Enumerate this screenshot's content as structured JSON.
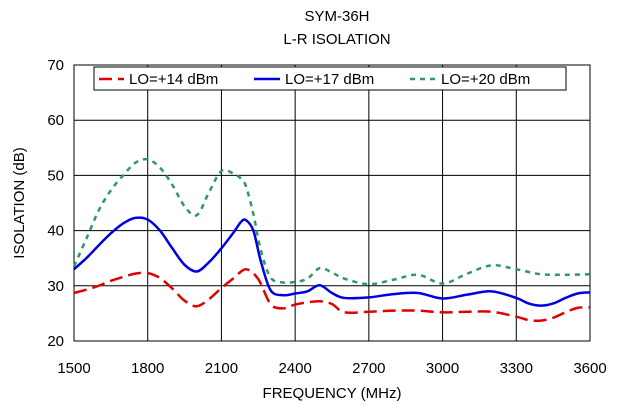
{
  "chart_data": {
    "type": "line",
    "title": "SYM-36H",
    "subtitle": "L-R ISOLATION",
    "xlabel": "FREQUENCY (MHz)",
    "ylabel": "ISOLATION (dB)",
    "xlim": [
      1500,
      3600
    ],
    "ylim": [
      20,
      70
    ],
    "xticks": [
      1500,
      1800,
      2100,
      2400,
      2700,
      3000,
      3300,
      3600
    ],
    "yticks": [
      20,
      30,
      40,
      50,
      60,
      70
    ],
    "grid": true,
    "legend_position": "top",
    "series": [
      {
        "name": "LO=+14 dBm",
        "color": "#e00000",
        "dash": "long-dash",
        "x": [
          1500,
          1550,
          1600,
          1650,
          1700,
          1750,
          1800,
          1850,
          1900,
          1950,
          2000,
          2050,
          2100,
          2150,
          2200,
          2250,
          2300,
          2350,
          2400,
          2450,
          2500,
          2550,
          2600,
          2700,
          2800,
          2900,
          3000,
          3100,
          3200,
          3300,
          3350,
          3400,
          3450,
          3500,
          3550,
          3600
        ],
        "y": [
          28.7,
          29.3,
          30.0,
          30.9,
          31.6,
          32.2,
          32.3,
          31.4,
          29.5,
          27.3,
          26.3,
          27.6,
          29.6,
          31.4,
          33.0,
          31.2,
          26.7,
          25.9,
          26.6,
          27.0,
          27.2,
          26.7,
          25.2,
          25.3,
          25.5,
          25.5,
          25.2,
          25.3,
          25.3,
          24.4,
          23.8,
          23.7,
          24.2,
          25.2,
          26.0,
          26.1
        ]
      },
      {
        "name": "LO=+17 dBm",
        "color": "#0000e0",
        "dash": "solid",
        "x": [
          1500,
          1550,
          1600,
          1650,
          1700,
          1750,
          1800,
          1850,
          1900,
          1950,
          2000,
          2050,
          2100,
          2150,
          2180,
          2200,
          2230,
          2260,
          2300,
          2350,
          2400,
          2450,
          2500,
          2550,
          2600,
          2700,
          2800,
          2900,
          3000,
          3100,
          3200,
          3300,
          3350,
          3400,
          3450,
          3500,
          3550,
          3600
        ],
        "y": [
          33.0,
          35.0,
          37.3,
          39.5,
          41.3,
          42.3,
          42.0,
          40.0,
          36.8,
          33.8,
          32.6,
          34.3,
          36.8,
          39.7,
          41.6,
          41.9,
          40.0,
          34.5,
          29.2,
          28.3,
          28.6,
          29.0,
          30.1,
          28.7,
          27.8,
          27.9,
          28.5,
          28.7,
          27.7,
          28.4,
          29.0,
          27.8,
          26.8,
          26.4,
          26.8,
          27.8,
          28.6,
          28.8
        ]
      },
      {
        "name": "LO=+20 dBm",
        "color": "#2e9960",
        "dash": "short-dash",
        "x": [
          1500,
          1550,
          1600,
          1650,
          1700,
          1750,
          1800,
          1850,
          1900,
          1950,
          2000,
          2050,
          2100,
          2150,
          2180,
          2200,
          2230,
          2260,
          2300,
          2350,
          2400,
          2450,
          2500,
          2550,
          2600,
          2700,
          2800,
          2900,
          3000,
          3100,
          3200,
          3300,
          3400,
          3500,
          3600
        ],
        "y": [
          33.5,
          38.5,
          43.6,
          47.3,
          50.0,
          52.3,
          52.9,
          51.4,
          48.3,
          44.4,
          42.8,
          47.0,
          50.8,
          50.3,
          49.4,
          48.0,
          43.0,
          36.5,
          31.5,
          30.6,
          30.7,
          31.3,
          33.2,
          32.4,
          31.3,
          30.3,
          31.1,
          32.0,
          30.4,
          32.2,
          33.7,
          33.0,
          32.1,
          32.0,
          32.1
        ]
      }
    ]
  }
}
